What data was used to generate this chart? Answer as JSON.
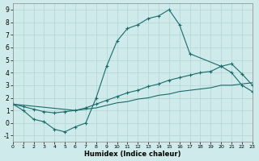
{
  "xlabel": "Humidex (Indice chaleur)",
  "xlim": [
    0,
    23
  ],
  "ylim": [
    -1.5,
    9.5
  ],
  "yticks": [
    -1,
    0,
    1,
    2,
    3,
    4,
    5,
    6,
    7,
    8,
    9
  ],
  "xticks": [
    0,
    1,
    2,
    3,
    4,
    5,
    6,
    7,
    8,
    9,
    10,
    11,
    12,
    13,
    14,
    15,
    16,
    17,
    18,
    19,
    20,
    21,
    22,
    23
  ],
  "background_color": "#ceeaea",
  "grid_color": "#b8d8d8",
  "line_color": "#1a6b6b",
  "line1": {
    "x": [
      0,
      1,
      2,
      3,
      4,
      5,
      6,
      7,
      8,
      9,
      10,
      11,
      12,
      13,
      14,
      15,
      16,
      17,
      20,
      21,
      22,
      23
    ],
    "y": [
      1.5,
      1.0,
      0.3,
      0.1,
      -0.5,
      -0.7,
      -0.3,
      0.0,
      2.0,
      4.5,
      6.5,
      7.5,
      7.8,
      8.3,
      8.5,
      9.0,
      7.8,
      5.5,
      4.5,
      4.0,
      3.0,
      2.5
    ]
  },
  "line2": {
    "x": [
      0,
      1,
      2,
      3,
      4,
      5,
      6,
      7,
      8,
      9,
      10,
      11,
      12,
      13,
      14,
      15,
      16,
      17,
      18,
      19,
      20,
      21,
      22,
      23
    ],
    "y": [
      1.5,
      1.3,
      1.1,
      0.9,
      0.8,
      0.9,
      1.0,
      1.2,
      1.5,
      1.8,
      2.1,
      2.4,
      2.6,
      2.9,
      3.1,
      3.4,
      3.6,
      3.8,
      4.0,
      4.1,
      4.5,
      4.7,
      3.9,
      3.0
    ]
  },
  "line3": {
    "x": [
      0,
      6,
      7,
      8,
      9,
      10,
      11,
      12,
      13,
      14,
      15,
      16,
      17,
      18,
      19,
      20,
      21,
      22,
      23
    ],
    "y": [
      1.5,
      1.0,
      1.1,
      1.2,
      1.4,
      1.6,
      1.7,
      1.9,
      2.0,
      2.2,
      2.3,
      2.5,
      2.6,
      2.7,
      2.8,
      3.0,
      3.0,
      3.1,
      3.2
    ]
  }
}
